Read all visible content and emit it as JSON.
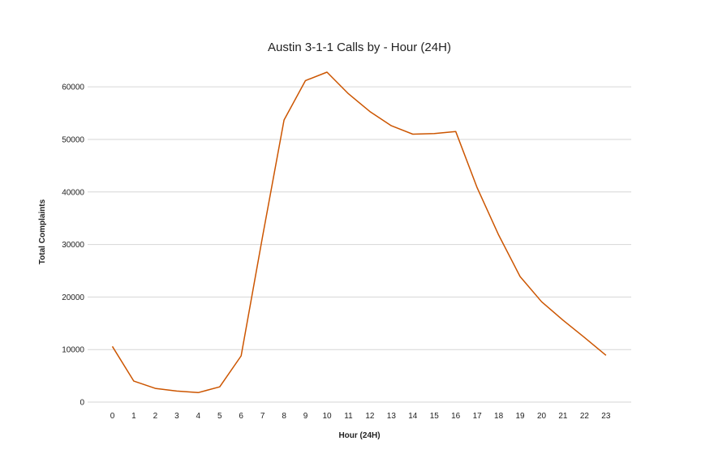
{
  "chart_data": {
    "type": "line",
    "title": "Austin 3-1-1 Calls by - Hour (24H)",
    "xlabel": "Hour (24H)",
    "ylabel": "Total Complaints",
    "categories": [
      "0",
      "1",
      "2",
      "3",
      "4",
      "5",
      "6",
      "7",
      "8",
      "9",
      "10",
      "11",
      "12",
      "13",
      "14",
      "15",
      "16",
      "17",
      "18",
      "19",
      "20",
      "21",
      "22",
      "23"
    ],
    "values": [
      10600,
      4000,
      2600,
      2100,
      1800,
      2900,
      8800,
      31500,
      53700,
      61200,
      62800,
      58700,
      55300,
      52600,
      51000,
      51100,
      51500,
      40800,
      31800,
      23900,
      19100,
      15600,
      12300,
      8900
    ],
    "yticks": [
      0,
      10000,
      20000,
      30000,
      40000,
      50000,
      60000
    ],
    "ylim": [
      0,
      62800
    ],
    "grid": true,
    "line_color": "#cc5500"
  }
}
